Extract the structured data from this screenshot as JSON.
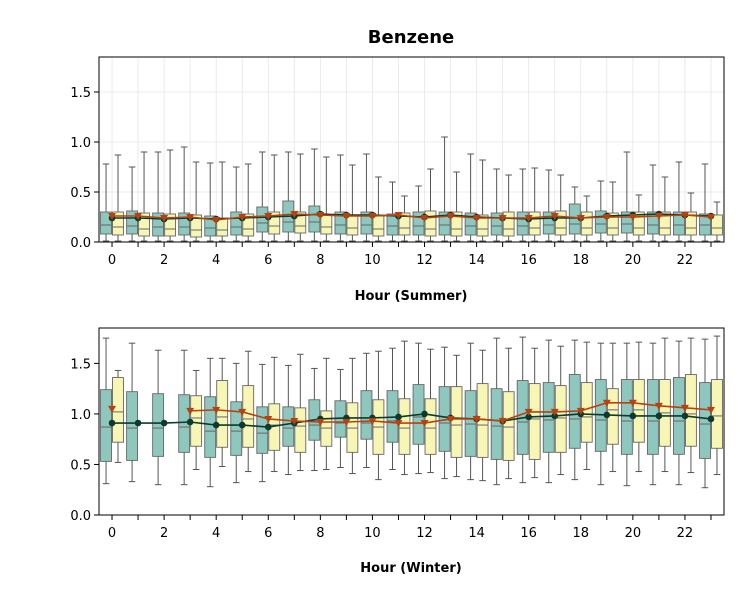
{
  "chart_data": {
    "title": "Benzene",
    "colors": {
      "box_a": "#8ec7bd",
      "box_b": "#f8f6b4",
      "line_a": "#0d3a2c",
      "line_b": "#b5420f",
      "grid": "#e6e6e6"
    },
    "panels": [
      {
        "type": "box",
        "xlabel": "Hour (Summer)",
        "ylim": [
          0,
          1.85
        ],
        "yticks": [
          "0.0",
          "0.5",
          "1.0",
          "1.5"
        ],
        "xticks": [
          "0",
          "2",
          "4",
          "6",
          "8",
          "10",
          "12",
          "14",
          "16",
          "18",
          "20",
          "22"
        ],
        "grid": true,
        "series_a": {
          "means": [
            0.24,
            0.24,
            0.23,
            0.24,
            0.23,
            0.24,
            0.25,
            0.26,
            0.28,
            0.27,
            0.27,
            0.26,
            0.25,
            0.27,
            0.25,
            0.24,
            0.23,
            0.24,
            0.24,
            0.26,
            0.27,
            0.28,
            0.27,
            0.26
          ],
          "q1": [
            0.08,
            0.08,
            0.06,
            0.07,
            0.06,
            0.07,
            0.1,
            0.1,
            0.1,
            0.08,
            0.08,
            0.07,
            0.07,
            0.07,
            0.07,
            0.07,
            0.07,
            0.08,
            0.08,
            0.09,
            0.09,
            0.08,
            0.07,
            0.07
          ],
          "median": [
            0.17,
            0.16,
            0.15,
            0.15,
            0.14,
            0.15,
            0.19,
            0.2,
            0.2,
            0.17,
            0.17,
            0.16,
            0.16,
            0.17,
            0.16,
            0.16,
            0.16,
            0.17,
            0.18,
            0.18,
            0.18,
            0.17,
            0.17,
            0.17
          ],
          "q3": [
            0.3,
            0.31,
            0.29,
            0.29,
            0.26,
            0.3,
            0.35,
            0.41,
            0.36,
            0.3,
            0.3,
            0.28,
            0.3,
            0.3,
            0.29,
            0.29,
            0.3,
            0.3,
            0.38,
            0.31,
            0.3,
            0.3,
            0.3,
            0.28
          ],
          "whisker_low": [
            0.01,
            0.01,
            0.01,
            0.01,
            0.01,
            0.01,
            0.01,
            0.01,
            0.01,
            0.01,
            0.01,
            0.01,
            0.01,
            0.01,
            0.01,
            0.01,
            0.01,
            0.01,
            0.01,
            0.01,
            0.01,
            0.01,
            0.01,
            0.01
          ],
          "whisker_high": [
            0.78,
            0.75,
            0.9,
            0.95,
            0.79,
            0.75,
            0.9,
            0.9,
            0.93,
            0.87,
            0.88,
            0.6,
            0.56,
            1.05,
            0.88,
            0.73,
            0.73,
            0.72,
            0.55,
            0.61,
            0.9,
            0.77,
            0.8,
            0.78
          ]
        },
        "series_b": {
          "means": [
            0.26,
            0.26,
            0.24,
            0.25,
            0.22,
            0.25,
            0.26,
            0.28,
            0.27,
            0.26,
            0.26,
            0.27,
            0.24,
            0.26,
            0.24,
            0.24,
            0.24,
            0.26,
            0.24,
            0.25,
            0.25,
            0.26,
            0.27,
            0.25
          ],
          "q1": [
            0.07,
            0.06,
            0.06,
            0.05,
            0.06,
            0.06,
            0.08,
            0.09,
            0.08,
            0.07,
            0.06,
            0.07,
            0.06,
            0.06,
            0.06,
            0.06,
            0.07,
            0.07,
            0.07,
            0.07,
            0.07,
            0.07,
            0.07,
            0.07
          ],
          "median": [
            0.15,
            0.13,
            0.13,
            0.12,
            0.12,
            0.13,
            0.16,
            0.16,
            0.15,
            0.14,
            0.13,
            0.14,
            0.13,
            0.13,
            0.13,
            0.13,
            0.14,
            0.14,
            0.14,
            0.14,
            0.14,
            0.14,
            0.14,
            0.14
          ],
          "q3": [
            0.3,
            0.29,
            0.28,
            0.27,
            0.24,
            0.28,
            0.3,
            0.3,
            0.27,
            0.27,
            0.26,
            0.29,
            0.31,
            0.3,
            0.27,
            0.3,
            0.3,
            0.31,
            0.3,
            0.29,
            0.3,
            0.3,
            0.3,
            0.27
          ],
          "whisker_low": [
            0.01,
            0.01,
            0.01,
            0.01,
            0.01,
            0.01,
            0.01,
            0.01,
            0.01,
            0.01,
            0.01,
            0.01,
            0.01,
            0.01,
            0.01,
            0.01,
            0.01,
            0.01,
            0.01,
            0.01,
            0.01,
            0.01,
            0.01,
            0.01
          ],
          "whisker_high": [
            0.87,
            0.9,
            0.92,
            0.8,
            0.8,
            0.78,
            0.87,
            0.88,
            0.85,
            0.77,
            0.65,
            0.46,
            0.73,
            0.7,
            0.82,
            0.67,
            0.74,
            0.67,
            0.46,
            0.6,
            0.47,
            0.65,
            0.49,
            0.4
          ]
        }
      },
      {
        "type": "box",
        "xlabel": "Hour (Winter)",
        "ylim": [
          0,
          1.85
        ],
        "yticks": [
          "0.0",
          "0.5",
          "1.0",
          "1.5"
        ],
        "xticks": [
          "0",
          "2",
          "4",
          "6",
          "8",
          "10",
          "12",
          "14",
          "16",
          "18",
          "20",
          "22"
        ],
        "grid": false,
        "series_a": {
          "means": [
            0.91,
            0.91,
            0.91,
            0.92,
            0.89,
            0.89,
            0.87,
            0.91,
            0.95,
            0.96,
            0.96,
            0.97,
            1.0,
            0.96,
            0.95,
            0.93,
            0.97,
            0.98,
            1.0,
            0.99,
            0.98,
            0.98,
            0.98,
            0.95
          ],
          "q1": [
            0.53,
            0.54,
            0.58,
            0.62,
            0.57,
            0.59,
            0.61,
            0.68,
            0.74,
            0.77,
            0.75,
            0.72,
            0.7,
            0.63,
            0.58,
            0.55,
            0.6,
            0.62,
            0.66,
            0.63,
            0.6,
            0.6,
            0.6,
            0.56
          ],
          "median": [
            0.87,
            0.86,
            0.86,
            0.87,
            0.83,
            0.83,
            0.81,
            0.86,
            0.89,
            0.91,
            0.91,
            0.93,
            0.97,
            0.91,
            0.9,
            0.88,
            0.92,
            0.94,
            0.95,
            0.94,
            0.93,
            0.93,
            0.93,
            0.9
          ],
          "q3": [
            1.24,
            1.22,
            1.2,
            1.19,
            1.17,
            1.12,
            1.07,
            1.07,
            1.14,
            1.13,
            1.23,
            1.23,
            1.29,
            1.27,
            1.23,
            1.25,
            1.33,
            1.31,
            1.39,
            1.34,
            1.34,
            1.34,
            1.36,
            1.31
          ],
          "whisker_low": [
            0.31,
            0.33,
            0.3,
            0.3,
            0.28,
            0.32,
            0.33,
            0.4,
            0.44,
            0.47,
            0.47,
            0.45,
            0.41,
            0.36,
            0.35,
            0.3,
            0.32,
            0.32,
            0.35,
            0.3,
            0.29,
            0.3,
            0.3,
            0.27
          ],
          "whisker_high": [
            1.75,
            1.7,
            1.63,
            1.63,
            1.55,
            1.5,
            1.49,
            1.48,
            1.45,
            1.44,
            1.6,
            1.65,
            1.7,
            1.66,
            1.7,
            1.75,
            1.76,
            1.73,
            1.73,
            1.7,
            1.7,
            1.7,
            1.72,
            1.74
          ]
        },
        "series_b": {
          "means": [
            1.05,
            null,
            null,
            1.03,
            1.04,
            1.02,
            0.95,
            0.93,
            0.92,
            0.92,
            0.93,
            0.91,
            0.91,
            0.95,
            0.95,
            0.93,
            1.02,
            1.02,
            1.03,
            1.11,
            1.11,
            1.08,
            1.06,
            1.04
          ],
          "q1": [
            0.72,
            null,
            null,
            0.68,
            0.67,
            0.67,
            0.64,
            0.62,
            0.68,
            0.62,
            0.6,
            0.6,
            0.6,
            0.57,
            0.57,
            0.54,
            0.55,
            0.62,
            0.72,
            0.7,
            0.72,
            0.68,
            0.68,
            0.66
          ],
          "median": [
            1.02,
            null,
            null,
            0.96,
            0.97,
            0.95,
            0.89,
            0.88,
            0.86,
            0.86,
            0.87,
            0.86,
            0.86,
            0.89,
            0.89,
            0.87,
            0.95,
            0.96,
            0.97,
            1.04,
            1.04,
            1.01,
            1.0,
            0.98
          ],
          "q3": [
            1.36,
            null,
            null,
            1.18,
            1.33,
            1.28,
            1.1,
            1.06,
            1.03,
            1.11,
            1.14,
            1.15,
            1.15,
            1.27,
            1.3,
            1.22,
            1.3,
            1.28,
            1.31,
            1.25,
            1.34,
            1.34,
            1.39,
            1.34
          ],
          "whisker_low": [
            0.52,
            null,
            null,
            0.45,
            0.48,
            0.43,
            0.43,
            0.44,
            0.45,
            0.41,
            0.35,
            0.4,
            0.42,
            0.38,
            0.34,
            0.36,
            0.37,
            0.4,
            0.45,
            0.43,
            0.43,
            0.43,
            0.42,
            0.4
          ],
          "whisker_high": [
            1.43,
            null,
            null,
            1.43,
            1.55,
            1.62,
            1.56,
            1.59,
            1.55,
            1.55,
            1.62,
            1.72,
            1.64,
            1.58,
            1.63,
            1.65,
            1.65,
            1.67,
            1.71,
            1.7,
            1.71,
            1.75,
            1.75,
            1.77
          ]
        }
      }
    ]
  }
}
